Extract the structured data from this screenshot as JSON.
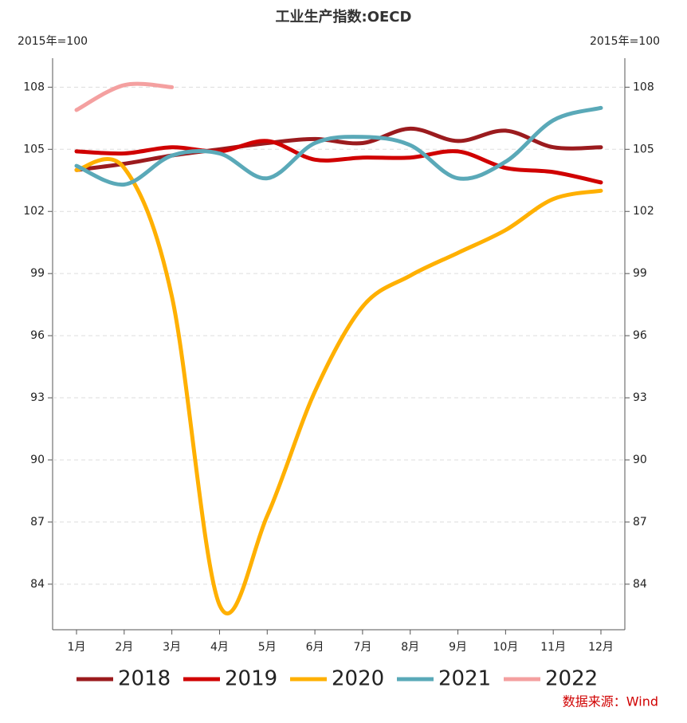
{
  "chart_data": {
    "type": "line",
    "title": "工业生产指数:OECD",
    "ylabel": "2015年=100",
    "y2label": "2015年=100",
    "categories": [
      "1月",
      "2月",
      "3月",
      "4月",
      "5月",
      "6月",
      "7月",
      "8月",
      "9月",
      "10月",
      "11月",
      "12月"
    ],
    "series": [
      {
        "name": "2018",
        "color": "#9b1b1e",
        "values": [
          104.0,
          104.3,
          104.7,
          105.0,
          105.3,
          105.5,
          105.3,
          106.0,
          105.4,
          105.9,
          105.1,
          105.1
        ]
      },
      {
        "name": "2019",
        "color": "#d00000",
        "values": [
          104.9,
          104.8,
          105.1,
          104.9,
          105.4,
          104.5,
          104.6,
          104.6,
          104.9,
          104.1,
          103.9,
          103.4
        ]
      },
      {
        "name": "2020",
        "color": "#ffb000",
        "values": [
          104.0,
          104.1,
          97.9,
          83.0,
          87.3,
          93.3,
          97.4,
          98.9,
          100.0,
          101.1,
          102.6,
          103.0
        ]
      },
      {
        "name": "2021",
        "color": "#5aa9b8",
        "values": [
          104.2,
          103.3,
          104.7,
          104.8,
          103.6,
          105.3,
          105.6,
          105.2,
          103.6,
          104.4,
          106.4,
          107.0
        ]
      },
      {
        "name": "2022",
        "color": "#f4a0a0",
        "values": [
          106.9,
          108.1,
          108.0,
          null,
          null,
          null,
          null,
          null,
          null,
          null,
          null,
          null
        ]
      }
    ],
    "ylim": [
      81.8,
      109.4
    ],
    "yticks": [
      84,
      87,
      90,
      93,
      96,
      99,
      102,
      105,
      108
    ],
    "y2lim": [
      81.8,
      109.4
    ],
    "y2ticks": [
      84,
      87,
      90,
      93,
      96,
      99,
      102,
      105,
      108
    ],
    "grid": true,
    "legend": "bottom",
    "source": "数据来源：Wind"
  }
}
